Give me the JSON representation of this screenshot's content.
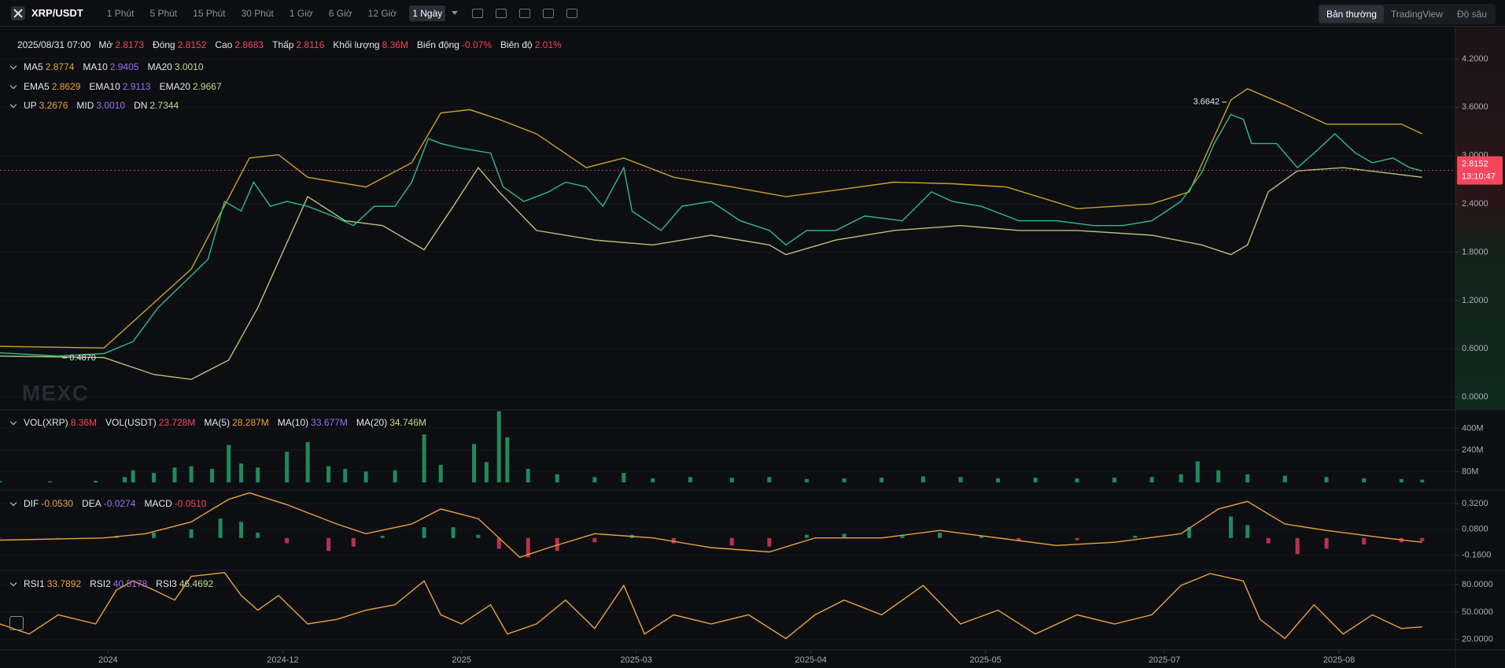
{
  "toolbar": {
    "symbol": "XRP/USDT",
    "intervals": [
      "1 Phút",
      "5 Phút",
      "15 Phút",
      "30 Phút",
      "1 Giờ",
      "6 Giờ",
      "12 Giờ",
      "1 Ngày"
    ],
    "active_interval": 7,
    "views": [
      "Bản thường",
      "TradingView",
      "Độ sâu"
    ],
    "active_view": 0
  },
  "watermark": "MEXC",
  "chart_data": [
    {
      "type": "line",
      "legend_rows": [
        [
          {
            "label": "2025/08/31 07:00"
          },
          {
            "label": "Mở",
            "value": "2.8173",
            "color": "#f6465d"
          },
          {
            "label": "Đóng",
            "value": "2.8152",
            "color": "#f6465d"
          },
          {
            "label": "Cao",
            "value": "2.8683",
            "color": "#f6465d"
          },
          {
            "label": "Thấp",
            "value": "2.8116",
            "color": "#f6465d"
          },
          {
            "label": "Khối lượng",
            "value": "8.36M",
            "color": "#f6465d"
          },
          {
            "label": "Biến động",
            "value": "-0.07%",
            "color": "#f6465d"
          },
          {
            "label": "Biên độ",
            "value": "2.01%",
            "color": "#f6465d"
          }
        ],
        [
          {
            "label": "MA5",
            "value": "2.8774",
            "color": "#e7a33c"
          },
          {
            "label": "MA10",
            "value": "2.9405",
            "color": "#9b6df2"
          },
          {
            "label": "MA20",
            "value": "3.0010",
            "color": "#c7d88a"
          }
        ],
        [
          {
            "label": "EMA5",
            "value": "2.8629",
            "color": "#e7a33c"
          },
          {
            "label": "EMA10",
            "value": "2.9113",
            "color": "#9b6df2"
          },
          {
            "label": "EMA20",
            "value": "2.9667",
            "color": "#c7d88a"
          }
        ],
        [
          {
            "label": "UP",
            "value": "3.2676",
            "color": "#e7a33c"
          },
          {
            "label": "MID",
            "value": "3.0010",
            "color": "#9b6df2"
          },
          {
            "label": "DN",
            "value": "2.7344",
            "color": "#c7d88a"
          }
        ]
      ],
      "xlim": [
        0,
        350
      ],
      "ylim": [
        -0.14,
        4.6
      ],
      "yticks": [
        {
          "value": 4.2,
          "label": "4.2000"
        },
        {
          "value": 3.6,
          "label": "3.6000"
        },
        {
          "value": 3.0,
          "label": "3.0000"
        },
        {
          "value": 2.4,
          "label": "2.4000"
        },
        {
          "value": 1.8,
          "label": "1.8000"
        },
        {
          "value": 1.2,
          "label": "1.2000"
        },
        {
          "value": 0.6,
          "label": "0.6000"
        },
        {
          "value": 0,
          "label": "0.0000"
        }
      ],
      "grid": true,
      "series": [
        {
          "color": "#c9a227",
          "x": [
            0,
            25,
            46,
            60,
            67,
            74,
            88,
            99,
            106,
            113,
            120,
            129,
            141,
            150,
            162,
            176,
            189,
            201,
            215,
            229,
            242,
            259,
            277,
            286,
            296,
            300,
            309,
            319,
            337,
            342
          ],
          "values": [
            0.63,
            0.61,
            1.59,
            2.97,
            3.01,
            2.73,
            2.61,
            2.91,
            3.53,
            3.57,
            3.45,
            3.27,
            2.85,
            2.97,
            2.73,
            2.61,
            2.49,
            2.57,
            2.67,
            2.65,
            2.61,
            2.34,
            2.4,
            2.55,
            3.69,
            3.83,
            3.63,
            3.39,
            3.39,
            3.27
          ]
        },
        {
          "color": "#b9c27a",
          "x": [
            0,
            25,
            37,
            46,
            55,
            62,
            74,
            83,
            92,
            102,
            109,
            115,
            120,
            129,
            143,
            157,
            171,
            185,
            189,
            201,
            215,
            231,
            245,
            259,
            277,
            289,
            296,
            300,
            305,
            312,
            323,
            342
          ],
          "values": [
            0.51,
            0.49,
            0.28,
            0.22,
            0.46,
            1.11,
            2.49,
            2.19,
            2.13,
            1.83,
            2.37,
            2.85,
            2.55,
            2.07,
            1.95,
            1.89,
            2.01,
            1.89,
            1.77,
            1.95,
            2.07,
            2.13,
            2.07,
            2.07,
            2.01,
            1.89,
            1.77,
            1.89,
            2.55,
            2.81,
            2.85,
            2.73
          ]
        },
        {
          "color": "#2ebd85",
          "x": [
            0,
            14,
            25,
            32,
            38,
            44,
            50,
            54,
            58,
            61,
            65,
            69,
            74,
            80,
            85,
            90,
            95,
            99,
            103,
            106,
            111,
            118,
            121,
            126,
            132,
            136,
            141,
            145,
            150,
            152,
            159,
            164,
            171,
            178,
            185,
            189,
            194,
            201,
            208,
            217,
            224,
            229,
            236,
            245,
            254,
            263,
            270,
            277,
            284,
            289,
            292,
            296,
            299,
            301,
            307,
            312,
            316,
            321,
            326,
            330,
            335,
            339,
            342
          ],
          "values": [
            0.55,
            0.51,
            0.54,
            0.69,
            1.11,
            1.41,
            1.71,
            2.43,
            2.31,
            2.67,
            2.37,
            2.43,
            2.37,
            2.25,
            2.13,
            2.37,
            2.37,
            2.67,
            3.21,
            3.15,
            3.09,
            3.03,
            2.61,
            2.43,
            2.55,
            2.67,
            2.61,
            2.37,
            2.85,
            2.31,
            2.07,
            2.37,
            2.43,
            2.19,
            2.07,
            1.89,
            2.07,
            2.07,
            2.25,
            2.19,
            2.55,
            2.43,
            2.37,
            2.19,
            2.19,
            2.13,
            2.13,
            2.19,
            2.43,
            2.79,
            3.15,
            3.51,
            3.45,
            3.15,
            3.15,
            2.85,
            3.03,
            3.27,
            3.03,
            2.91,
            2.97,
            2.85,
            2.81
          ]
        }
      ],
      "high": {
        "x": 295,
        "value": 3.6642
      },
      "low": {
        "x": 15,
        "value": 0.487,
        "label": "0.4870"
      },
      "last_price": {
        "value": 2.8152,
        "countdown": "13:10:47",
        "color": "#f6465d"
      }
    },
    {
      "type": "bar",
      "legend_rows": [
        [
          {
            "label": "VOL(XRP)",
            "value": "8.36M",
            "color": "#f6465d"
          },
          {
            "label": "VOL(USDT)",
            "value": "23.728M",
            "color": "#f6465d"
          },
          {
            "label": "MA(5)",
            "value": "28.287M",
            "color": "#e7a33c"
          },
          {
            "label": "MA(10)",
            "value": "33.677M",
            "color": "#9b6df2"
          },
          {
            "label": "MA(20)",
            "value": "34.746M",
            "color": "#c7d88a"
          }
        ]
      ],
      "xlim": [
        0,
        350
      ],
      "ylim": [
        -40,
        530
      ],
      "yticks": [
        {
          "value": 400,
          "label": "400M"
        },
        {
          "value": 240,
          "label": "240M"
        },
        {
          "value": 80,
          "label": "80M"
        }
      ],
      "grid": true,
      "series": [
        {
          "color": "#1f8a5b",
          "x": [
            0,
            12,
            23,
            30,
            32,
            37,
            42,
            46,
            51,
            55,
            58,
            62,
            69,
            74,
            79,
            83,
            88,
            95,
            102,
            106,
            114,
            117,
            120,
            122,
            127,
            134,
            143,
            150,
            157,
            166,
            176,
            185,
            194,
            203,
            212,
            222,
            231,
            240,
            249,
            259,
            268,
            277,
            284,
            288,
            293,
            300,
            309,
            319,
            328,
            337,
            342
          ],
          "values": [
            10,
            8,
            12,
            40,
            90,
            70,
            110,
            120,
            100,
            277,
            140,
            110,
            227,
            298,
            120,
            100,
            80,
            90,
            355,
            130,
            284,
            150,
            526,
            334,
            100,
            60,
            40,
            70,
            30,
            40,
            35,
            40,
            25,
            30,
            35,
            45,
            40,
            30,
            35,
            30,
            35,
            40,
            60,
            156,
            90,
            60,
            50,
            40,
            30,
            25,
            20
          ]
        }
      ]
    },
    {
      "type": "macd",
      "legend_rows": [
        [
          {
            "label": "DIF",
            "value": "-0.0530",
            "color": "#e7a33c"
          },
          {
            "label": "DEA",
            "value": "-0.0274",
            "color": "#9b6df2"
          },
          {
            "label": "MACD",
            "value": "-0.0510",
            "color": "#f6465d"
          }
        ]
      ],
      "xlim": [
        0,
        350
      ],
      "ylim": [
        -0.28,
        0.43
      ],
      "yticks": [
        {
          "value": 0.32,
          "label": "0.3200"
        },
        {
          "value": 0.08,
          "label": "0.0800"
        },
        {
          "value": -0.16,
          "label": "-0.1600"
        }
      ],
      "grid": true,
      "series": [
        {
          "color": "#1f8a5b",
          "negative_color": "#b8324a",
          "x": [
            0,
            14,
            28,
            37,
            46,
            53,
            58,
            62,
            69,
            79,
            85,
            92,
            102,
            109,
            115,
            120,
            127,
            134,
            143,
            152,
            162,
            176,
            185,
            194,
            203,
            217,
            226,
            236,
            245,
            259,
            273,
            286,
            296,
            300,
            305,
            312,
            319,
            328,
            337,
            342
          ],
          "values": [
            0,
            0,
            0.02,
            0.05,
            0.08,
            0.18,
            0.15,
            0.05,
            -0.05,
            -0.12,
            -0.08,
            0.02,
            0.1,
            0.1,
            0.03,
            -0.1,
            -0.18,
            -0.12,
            -0.04,
            0.03,
            -0.05,
            -0.07,
            -0.08,
            0.03,
            0.04,
            0.03,
            0.05,
            0.02,
            -0.03,
            -0.02,
            0.02,
            0.1,
            0.2,
            0.12,
            -0.05,
            -0.15,
            -0.1,
            -0.06,
            -0.04,
            -0.03
          ]
        },
        {
          "color": "#e7a33c",
          "x": [
            0,
            25,
            35,
            46,
            55,
            60,
            69,
            81,
            88,
            99,
            106,
            115,
            125,
            132,
            143,
            157,
            171,
            185,
            196,
            212,
            226,
            240,
            254,
            268,
            284,
            293,
            300,
            309,
            319,
            333,
            342
          ],
          "values": [
            -0.02,
            0,
            0.04,
            0.15,
            0.36,
            0.42,
            0.31,
            0.13,
            0.04,
            0.13,
            0.27,
            0.18,
            -0.18,
            -0.09,
            0.04,
            0,
            -0.09,
            -0.13,
            0,
            0,
            0.07,
            0,
            -0.07,
            -0.04,
            0.04,
            0.27,
            0.34,
            0.13,
            0.07,
            0,
            -0.04
          ]
        }
      ]
    },
    {
      "type": "line",
      "legend_rows": [
        [
          {
            "label": "RSI1",
            "value": "33.7892",
            "color": "#e7a33c"
          },
          {
            "label": "RSI2",
            "value": "40.5178",
            "color": "#9b6df2"
          },
          {
            "label": "RSI3",
            "value": "46.4692",
            "color": "#c7d88a"
          }
        ]
      ],
      "xlim": [
        0,
        350
      ],
      "ylim": [
        9.5,
        93.7
      ],
      "yticks": [
        {
          "value": 80,
          "label": "80.0000"
        },
        {
          "value": 50,
          "label": "50.0000"
        },
        {
          "value": 20,
          "label": "20.0000"
        }
      ],
      "xticks": [
        {
          "value": 26,
          "label": "2024"
        },
        {
          "value": 68,
          "label": "2024-12"
        },
        {
          "value": 111,
          "label": "2025"
        },
        {
          "value": 153,
          "label": "2025-03"
        },
        {
          "value": 195,
          "label": "2025-04"
        },
        {
          "value": 237,
          "label": "2025-05"
        },
        {
          "value": 280,
          "label": "2025-07"
        },
        {
          "value": 322,
          "label": "2025-08"
        }
      ],
      "grid": true,
      "series": [
        {
          "color": "#e7a33c",
          "x": [
            0,
            7,
            14,
            23,
            28,
            32,
            37,
            42,
            46,
            54,
            58,
            62,
            67,
            74,
            81,
            88,
            95,
            102,
            106,
            111,
            118,
            122,
            129,
            136,
            143,
            150,
            155,
            162,
            171,
            180,
            189,
            196,
            203,
            212,
            222,
            231,
            240,
            249,
            259,
            268,
            277,
            284,
            291,
            299,
            303,
            309,
            316,
            323,
            330,
            337,
            342
          ],
          "values": [
            37,
            26,
            47,
            37,
            74,
            84,
            74,
            63,
            89,
            93,
            68,
            52,
            68,
            37,
            42,
            52,
            58,
            84,
            47,
            37,
            58,
            26,
            37,
            63,
            32,
            79,
            26,
            47,
            37,
            47,
            21,
            47,
            63,
            47,
            79,
            37,
            52,
            26,
            47,
            37,
            47,
            79,
            92,
            84,
            42,
            21,
            58,
            26,
            47,
            32,
            33.8
          ]
        }
      ]
    }
  ]
}
